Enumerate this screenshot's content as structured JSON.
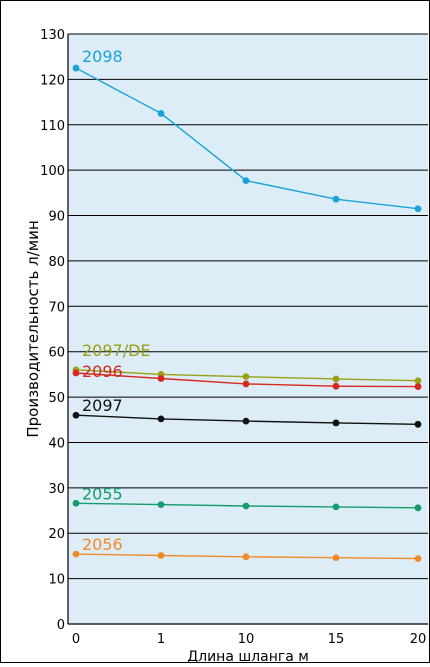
{
  "chart_data": {
    "type": "line",
    "title": "",
    "xlabel": "Длина шланга м",
    "ylabel": "Производительность л/мин",
    "categories": [
      "0",
      "1",
      "10",
      "15",
      "20"
    ],
    "ylim": [
      0,
      130
    ],
    "yticks": [
      0,
      10,
      20,
      30,
      40,
      50,
      60,
      70,
      80,
      90,
      100,
      110,
      120,
      130
    ],
    "grid": {
      "horizontal": true,
      "vertical": false
    },
    "legend": "labels next to line starts (left)",
    "colors": {
      "plot_background": "#dcedf8",
      "frame": "#000000",
      "gridline": "#000000"
    },
    "series": [
      {
        "name": "2098",
        "color": "#1ba3d6",
        "values": [
          122.5,
          112.5,
          97.7,
          93.6,
          91.5
        ]
      },
      {
        "name": "2097/DE",
        "color": "#9aa012",
        "values": [
          56.0,
          55.0,
          54.5,
          54.0,
          53.6
        ]
      },
      {
        "name": "2096",
        "color": "#d6281e",
        "values": [
          55.3,
          54.1,
          52.9,
          52.4,
          52.3
        ]
      },
      {
        "name": "2097",
        "color": "#111111",
        "values": [
          46.0,
          45.2,
          44.7,
          44.3,
          44.0
        ]
      },
      {
        "name": "2055",
        "color": "#169c6a",
        "values": [
          26.6,
          26.3,
          26.0,
          25.8,
          25.6
        ]
      },
      {
        "name": "2056",
        "color": "#f08a27",
        "values": [
          15.4,
          15.1,
          14.8,
          14.6,
          14.4
        ]
      }
    ]
  }
}
